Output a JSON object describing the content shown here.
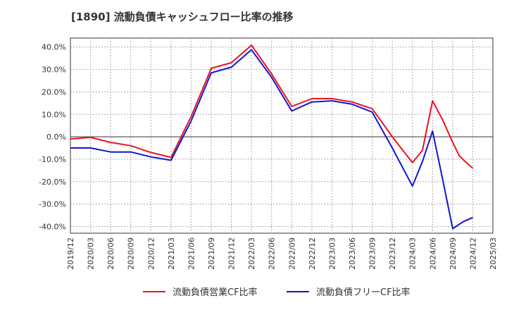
{
  "chart_data": {
    "type": "line",
    "title": "[1890]  流動負債キャッシュフロー比率の推移",
    "xlabel": "",
    "ylabel": "",
    "ylim": [
      -43,
      44
    ],
    "yticks": [
      40,
      30,
      20,
      10,
      0,
      -10,
      -20,
      -30,
      -40
    ],
    "ytick_labels": [
      "40.0%",
      "30.0%",
      "20.0%",
      "10.0%",
      "0.0%",
      "-10.0%",
      "-20.0%",
      "-30.0%",
      "-40.0%"
    ],
    "x_tick_labels": [
      "2019/12",
      "2020/03",
      "2020/06",
      "2020/09",
      "2020/12",
      "2021/03",
      "2021/06",
      "2021/09",
      "2021/12",
      "2022/03",
      "2022/06",
      "2022/09",
      "2022/12",
      "2023/03",
      "2023/06",
      "2023/09",
      "2023/12",
      "2024/03",
      "2024/06",
      "2024/09",
      "2024/12",
      "2025/03"
    ],
    "grid": true,
    "legend_position": "bottom",
    "series": [
      {
        "name": "流動負債営業CF比率",
        "color": "#e8141e",
        "values": [
          -1.0,
          -0.3,
          -2.5,
          -4.0,
          -7.0,
          -9.2,
          9.0,
          30.5,
          33.0,
          40.8,
          28.0,
          13.5,
          17.0,
          17.0,
          15.5,
          12.5,
          0.0,
          -11.5,
          -6.0,
          16.0,
          7.5,
          -2.5,
          -8.5,
          -11.5,
          -14.0
        ],
        "x_index": [
          0,
          1,
          2,
          3,
          4,
          5,
          6,
          7,
          8,
          9,
          10,
          11,
          12,
          13,
          14,
          15,
          16,
          17,
          17.5,
          18,
          18.5,
          19,
          19.33,
          19.67,
          20
        ]
      },
      {
        "name": "流動負債フリーCF比率",
        "color": "#1414d2",
        "values": [
          -5.0,
          -5.0,
          -6.8,
          -6.8,
          -9.0,
          -10.5,
          7.0,
          28.5,
          31.0,
          38.8,
          26.5,
          11.5,
          15.5,
          16.0,
          14.5,
          11.0,
          -5.0,
          -22.0,
          -11.0,
          2.5,
          -19.0,
          -41.0,
          -38.0,
          -36.0
        ],
        "x_index": [
          0,
          1,
          2,
          3,
          4,
          5,
          6,
          7,
          8,
          9,
          10,
          11,
          12,
          13,
          14,
          15,
          16,
          17,
          17.5,
          18,
          18.5,
          19,
          19.5,
          20
        ]
      }
    ]
  }
}
